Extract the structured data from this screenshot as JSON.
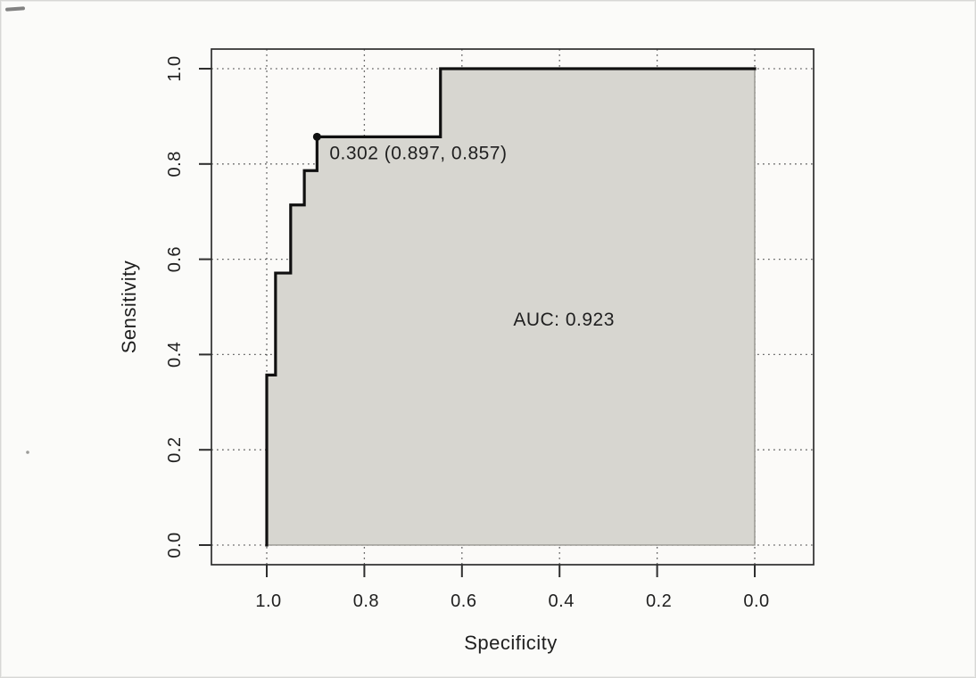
{
  "figure": {
    "kind": "scanned R pROC ROC curve plot",
    "background": "#fbfbf9"
  },
  "chart_data": {
    "type": "area",
    "subtype": "roc-step-curve-with-auc-shading",
    "title": "",
    "xlabel": "Specificity",
    "ylabel": "Sensitivity",
    "x_ticks": [
      "1.0",
      "0.8",
      "0.6",
      "0.4",
      "0.2",
      "0.0"
    ],
    "y_ticks": [
      "0.0",
      "0.2",
      "0.4",
      "0.6",
      "0.8",
      "1.0"
    ],
    "xlim": [
      1.0,
      0.0
    ],
    "ylim": [
      0.0,
      1.0
    ],
    "x_axis_reversed": true,
    "grid": "dotted",
    "legend": "none",
    "series": [
      {
        "name": "ROC curve",
        "points_spec_sens": [
          [
            1.0,
            0.0
          ],
          [
            1.0,
            0.357
          ],
          [
            0.982,
            0.357
          ],
          [
            0.982,
            0.571
          ],
          [
            0.951,
            0.571
          ],
          [
            0.951,
            0.714
          ],
          [
            0.923,
            0.714
          ],
          [
            0.923,
            0.786
          ],
          [
            0.897,
            0.786
          ],
          [
            0.897,
            0.857
          ],
          [
            0.644,
            0.857
          ],
          [
            0.644,
            1.0
          ],
          [
            0.0,
            1.0
          ]
        ]
      }
    ],
    "best_threshold": {
      "threshold": 0.302,
      "specificity": 0.897,
      "sensitivity": 0.857,
      "label": "0.302 (0.897, 0.857)"
    },
    "auc": 0.923,
    "auc_label": "AUC: 0.923",
    "auc_label_position_spec_sens": [
      0.391,
      0.476
    ],
    "colors": {
      "fill_area": "#d7d6d0",
      "fill_edge": "#8f8e88",
      "curve": "#101010",
      "grid": "#474747",
      "box": "#2e2e2e",
      "text": "#1f1f1f",
      "plot_background": "#fbfaf8"
    }
  }
}
